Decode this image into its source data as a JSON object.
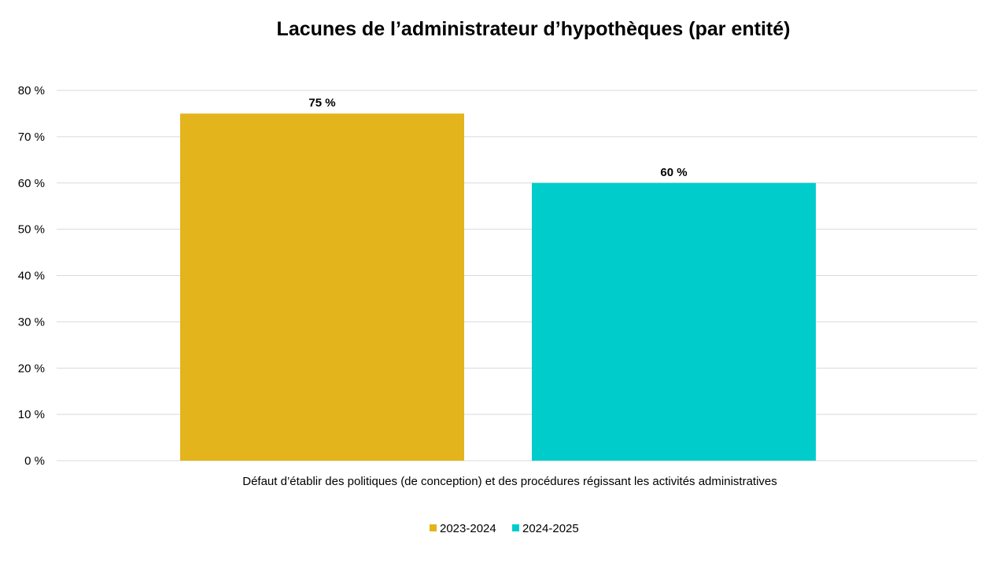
{
  "chart_data": {
    "type": "bar",
    "title": "Lacunes de l’administrateur d’hypothèques (par entité)",
    "categories": [
      "Défaut d’établir des politiques (de conception) et des procédures régissant les activités administratives"
    ],
    "series": [
      {
        "name": "2023-2024",
        "values": [
          75
        ],
        "color": "#e3b41b",
        "data_labels": [
          "75 %"
        ]
      },
      {
        "name": "2024-2025",
        "values": [
          60
        ],
        "color": "#00cccc",
        "data_labels": [
          "60 %"
        ]
      }
    ],
    "ylim": [
      0,
      80
    ],
    "yticks": [
      0,
      10,
      20,
      30,
      40,
      50,
      60,
      70,
      80
    ],
    "ytick_labels": [
      "0 %",
      "10 %",
      "20 %",
      "30 %",
      "40 %",
      "50 %",
      "60 %",
      "70 %",
      "80 %"
    ],
    "grid": true,
    "legend_position": "bottom"
  }
}
